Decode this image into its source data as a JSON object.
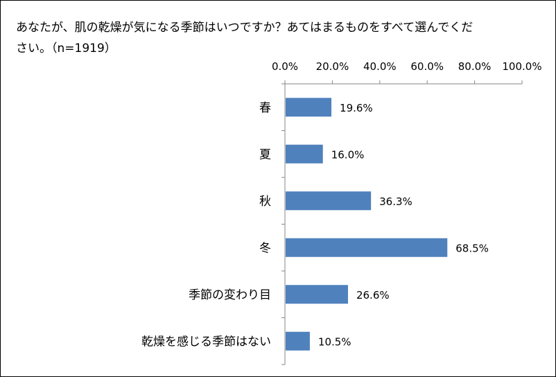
{
  "chart_data": {
    "type": "bar",
    "orientation": "horizontal",
    "title": "あなたが、肌の乾燥が気になる季節はいつですか？あてはまるものをすべて選んでください。（n=1919）",
    "categories": [
      "春",
      "夏",
      "秋",
      "冬",
      "季節の変わり目",
      "乾燥を感じる季節はない"
    ],
    "values": [
      19.6,
      16.0,
      36.3,
      68.5,
      26.6,
      10.5
    ],
    "value_labels": [
      "19.6%",
      "16.0%",
      "36.3%",
      "68.5%",
      "26.6%",
      "10.5%"
    ],
    "x_ticks": [
      "0.0%",
      "20.0%",
      "40.0%",
      "60.0%",
      "80.0%",
      "100.0%"
    ],
    "xlim": [
      0,
      100
    ],
    "x_axis_position": "top",
    "grid": false,
    "legend": "none",
    "bar_color": "#4F81BD",
    "axis_color": "#868686"
  }
}
